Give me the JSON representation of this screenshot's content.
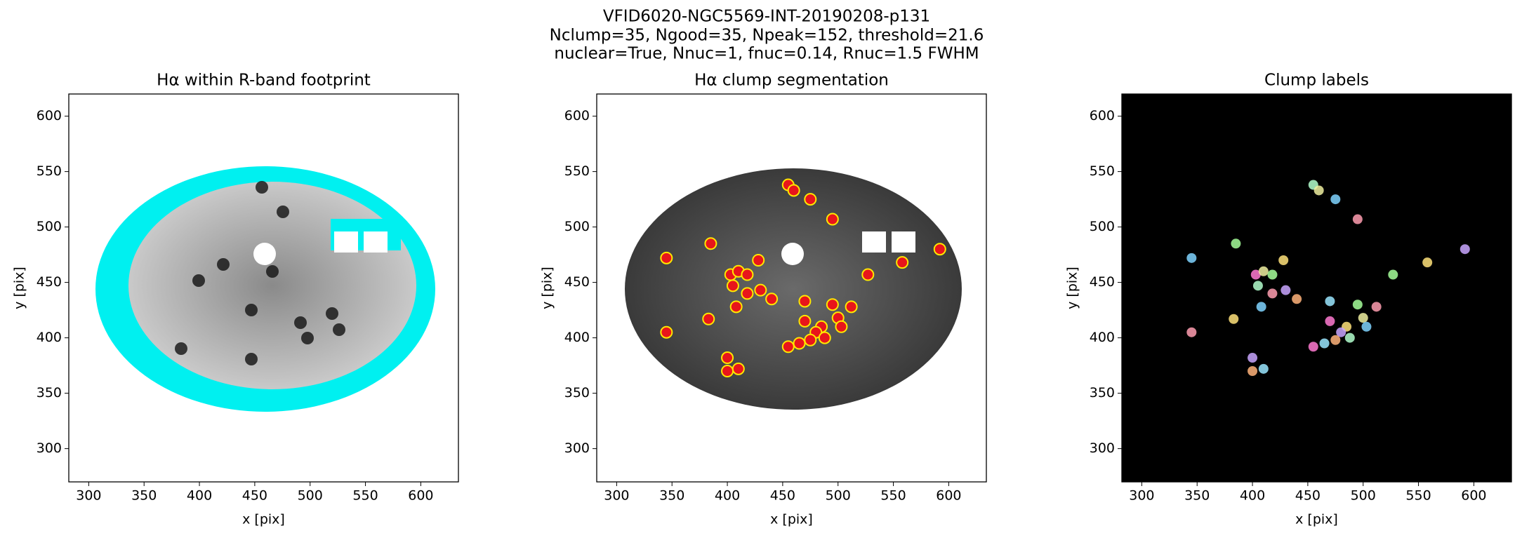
{
  "suptitle": [
    "VFID6020-NGC5569-INT-20190208-p131",
    "Nclump=35, Ngood=35, Npeak=152, threshold=21.6",
    "nuclear=True, Nnuc=1, fnuc=0.14, Rnuc=1.5 FWHM"
  ],
  "chart_data": [
    {
      "type": "image",
      "title": "Hα within R-band footprint",
      "xlabel": "x [pix]",
      "ylabel": "y [pix]",
      "xlim": [
        282,
        634
      ],
      "ylim": [
        270,
        620
      ],
      "xticks": [
        300,
        350,
        400,
        450,
        500,
        550,
        600
      ],
      "yticks": [
        300,
        350,
        400,
        450,
        500,
        550,
        600
      ],
      "style": "footprint"
    },
    {
      "type": "scatter",
      "title": "Hα clump segmentation",
      "xlabel": "x [pix]",
      "ylabel": "y [pix]",
      "xlim": [
        282,
        634
      ],
      "ylim": [
        270,
        620
      ],
      "xticks": [
        300,
        350,
        400,
        450,
        500,
        550,
        600
      ],
      "yticks": [
        300,
        350,
        400,
        450,
        500,
        550,
        600
      ],
      "style": "segmentation",
      "color": "#e8151b",
      "x": [
        345,
        345,
        385,
        383,
        400,
        400,
        410,
        403,
        405,
        410,
        408,
        418,
        418,
        428,
        430,
        440,
        470,
        470,
        455,
        460,
        475,
        495,
        495,
        485,
        480,
        475,
        465,
        455,
        488,
        500,
        503,
        512,
        527,
        558,
        592
      ],
      "y": [
        472,
        405,
        485,
        417,
        382,
        370,
        372,
        457,
        447,
        460,
        428,
        440,
        457,
        470,
        443,
        435,
        433,
        415,
        538,
        533,
        525,
        507,
        430,
        410,
        405,
        398,
        395,
        392,
        400,
        418,
        410,
        428,
        457,
        468,
        480
      ]
    },
    {
      "type": "image",
      "title": "Clump labels",
      "xlabel": "x [pix]",
      "ylabel": "y [pix]",
      "xlim": [
        282,
        634
      ],
      "ylim": [
        270,
        620
      ],
      "xticks": [
        300,
        350,
        400,
        450,
        500,
        550,
        600
      ],
      "yticks": [
        300,
        350,
        400,
        450,
        500,
        550,
        600
      ],
      "style": "labels"
    }
  ]
}
